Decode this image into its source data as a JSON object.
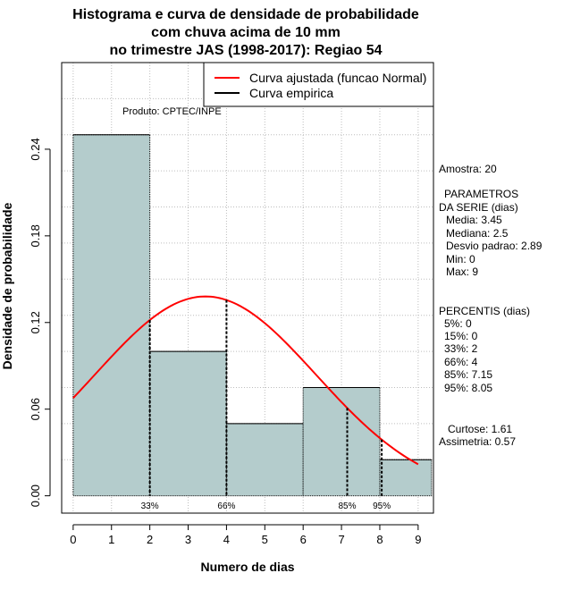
{
  "chart_data": {
    "type": "bar",
    "title_lines": [
      "Histograma e curva de densidade de probabilidade",
      "com chuva acima de 10 mm",
      "no trimestre JAS (1998-2017): Regiao 54"
    ],
    "xlabel": "Numero de dias",
    "ylabel": "Densidade de probabilidade",
    "xlim": [
      -0.3,
      9.4
    ],
    "ylim": [
      -0.012,
      0.3
    ],
    "x_ticks": [
      0,
      1,
      2,
      3,
      4,
      5,
      6,
      7,
      8,
      9
    ],
    "y_ticks": [
      0.0,
      0.06,
      0.12,
      0.18,
      0.24
    ],
    "y_tick_labels": [
      "0.00",
      "0.06",
      "0.12",
      "0.18",
      "0.24"
    ],
    "grid": true,
    "histogram": [
      {
        "x0": 0,
        "x1": 2,
        "density": 0.25
      },
      {
        "x0": 2,
        "x1": 4,
        "density": 0.1
      },
      {
        "x0": 4,
        "x1": 6,
        "density": 0.05
      },
      {
        "x0": 6,
        "x1": 8,
        "density": 0.075
      },
      {
        "x0": 8,
        "x1": 9.35,
        "density": 0.025
      }
    ],
    "bar_color": "#b4cccc",
    "normal_curve": {
      "mean": 3.45,
      "sd": 2.89,
      "x_from": 0,
      "x_to": 9.0,
      "color": "#ff0000"
    },
    "percentile_lines": [
      {
        "label": "33%",
        "x": 2.0
      },
      {
        "label": "66%",
        "x": 4.0
      },
      {
        "label": "85%",
        "x": 7.15
      },
      {
        "label": "95%",
        "x": 8.05
      }
    ],
    "legend": {
      "placement": "top-right",
      "entries": [
        {
          "label": "Curva ajustada (funcao Normal)",
          "color": "#ff0000"
        },
        {
          "label": "Curva empirica",
          "color": "#000000"
        }
      ]
    },
    "product_label": "Produto: CPTEC/INPE"
  },
  "side_panel": {
    "amostra": "Amostra: 20",
    "params_title_1": "PARAMETROS",
    "params_title_2": "DA SERIE (dias)",
    "media": "Media: 3.45",
    "mediana": "Mediana: 2.5",
    "desvio": "Desvio padrao: 2.89",
    "min": "Min: 0",
    "max": "Max: 9",
    "percentis_title": "PERCENTIS (dias)",
    "p5": "5%: 0",
    "p15": "15%: 0",
    "p33": "33%: 2",
    "p66": "66%: 4",
    "p85": "85%: 7.15",
    "p95": "95%: 8.05",
    "curtose": "Curtose: 1.61",
    "assimetria": "Assimetria: 0.57"
  }
}
